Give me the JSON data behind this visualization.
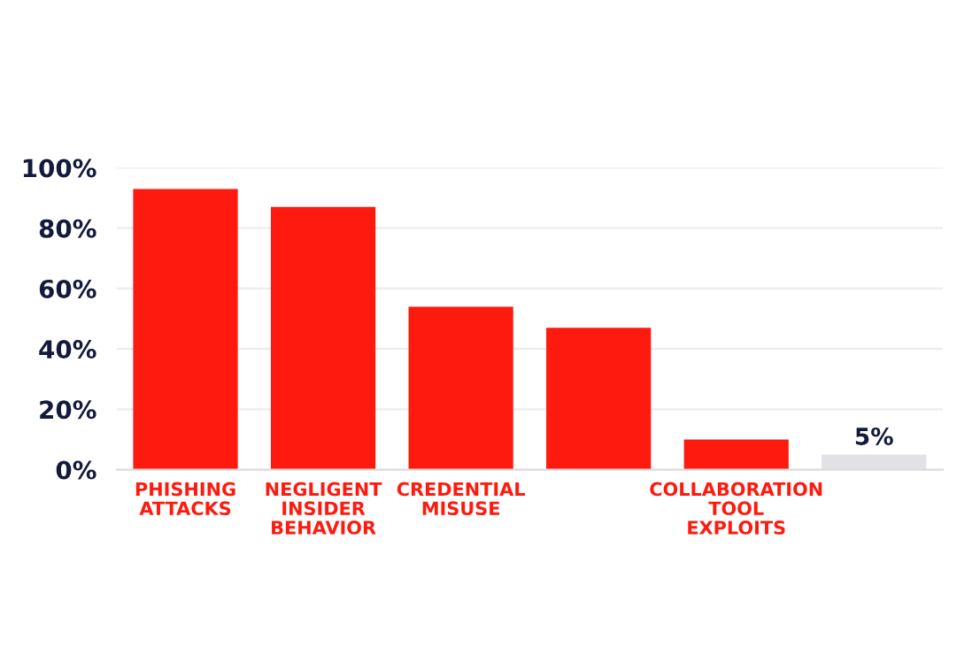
{
  "chart_data": {
    "type": "bar",
    "categories": [
      "PHISHING\nATTACKS",
      "NEGLIGENT\nINSIDER BEHAVIOR",
      "CREDENTIAL\nMISUSE",
      null,
      "COLLABORATION\nTOOL EXPLOITS",
      null
    ],
    "values": [
      93,
      87,
      54,
      47,
      10,
      5
    ],
    "colors": [
      "#fe1a0e",
      "#fe1a0e",
      "#fe1a0e",
      "#fe1a0e",
      "#fe1a0e",
      "#e1e1e6"
    ],
    "value_labels": [
      null,
      null,
      null,
      null,
      null,
      "5%"
    ],
    "ylim": [
      0,
      100
    ],
    "yticks": [
      {
        "value": 0,
        "label": "0%"
      },
      {
        "value": 20,
        "label": "20%"
      },
      {
        "value": 40,
        "label": "40%"
      },
      {
        "value": 60,
        "label": "60%"
      },
      {
        "value": 80,
        "label": "80%"
      },
      {
        "value": 100,
        "label": "100%"
      }
    ],
    "grid": "y"
  }
}
